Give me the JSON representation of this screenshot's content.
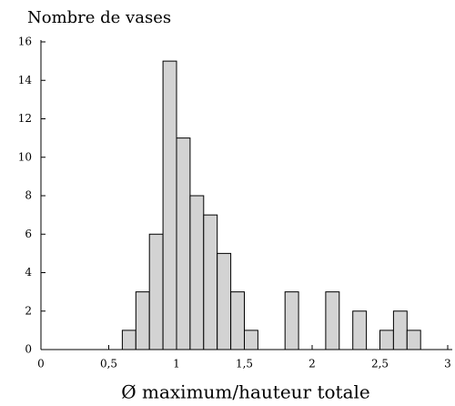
{
  "chart_data": {
    "type": "histogram",
    "title": "Nombre de vases",
    "xlabel": "Ø maximum/hauteur totale",
    "bins": [
      0.6,
      0.7,
      0.8,
      0.9,
      1.0,
      1.1,
      1.2,
      1.3,
      1.4,
      1.5,
      1.6,
      1.7,
      1.8,
      1.9,
      2.0,
      2.1,
      2.2,
      2.3,
      2.4,
      2.5,
      2.6,
      2.7,
      2.8
    ],
    "values": [
      1,
      3,
      6,
      15,
      11,
      8,
      7,
      5,
      3,
      1,
      0,
      0,
      3,
      0,
      0,
      3,
      0,
      2,
      0,
      1,
      2,
      1
    ],
    "color": "#d3d3d3",
    "xlim": [
      0,
      3
    ],
    "xticks": [
      0,
      {
        "value": 0.5,
        "label": "0,5"
      },
      1,
      {
        "value": 1.5,
        "label": "1,5"
      },
      2,
      {
        "value": 2.5,
        "label": "2,5"
      },
      3
    ],
    "ylim": [
      0,
      16
    ],
    "yticks": [
      0,
      2,
      4,
      6,
      8,
      10,
      12,
      14,
      16
    ],
    "grid": false
  }
}
